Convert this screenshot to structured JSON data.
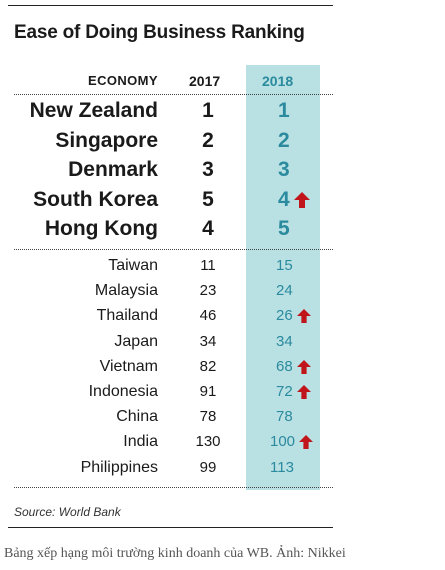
{
  "chart_data": {
    "type": "table",
    "title": "Ease of Doing Business Ranking",
    "columns": [
      "ECONOMY",
      "2017",
      "2018"
    ],
    "highlight_color": "#b9e0e3",
    "accent_color": "#2a8a9e",
    "arrow_color": "#c0151b",
    "top_rows": [
      {
        "economy": "New Zealand",
        "y2017": "1",
        "y2018": "1",
        "improved": false
      },
      {
        "economy": "Singapore",
        "y2017": "2",
        "y2018": "2",
        "improved": false
      },
      {
        "economy": "Denmark",
        "y2017": "3",
        "y2018": "3",
        "improved": false
      },
      {
        "economy": "South Korea",
        "y2017": "5",
        "y2018": "4",
        "improved": true
      },
      {
        "economy": "Hong Kong",
        "y2017": "4",
        "y2018": "5",
        "improved": false
      }
    ],
    "other_rows": [
      {
        "economy": "Taiwan",
        "y2017": "11",
        "y2018": "15",
        "improved": false
      },
      {
        "economy": "Malaysia",
        "y2017": "23",
        "y2018": "24",
        "improved": false
      },
      {
        "economy": "Thailand",
        "y2017": "46",
        "y2018": "26",
        "improved": true
      },
      {
        "economy": "Japan",
        "y2017": "34",
        "y2018": "34",
        "improved": false
      },
      {
        "economy": "Vietnam",
        "y2017": "82",
        "y2018": "68",
        "improved": true
      },
      {
        "economy": "Indonesia",
        "y2017": "91",
        "y2018": "72",
        "improved": true
      },
      {
        "economy": "China",
        "y2017": "78",
        "y2018": "78",
        "improved": false
      },
      {
        "economy": "India",
        "y2017": "130",
        "y2018": "100",
        "improved": true
      },
      {
        "economy": "Philippines",
        "y2017": "99",
        "y2018": "113",
        "improved": false
      }
    ],
    "source": "Source: World Bank"
  },
  "caption": "Bảng xếp hạng môi trường kinh doanh của WB. Ảnh: Nikkei"
}
